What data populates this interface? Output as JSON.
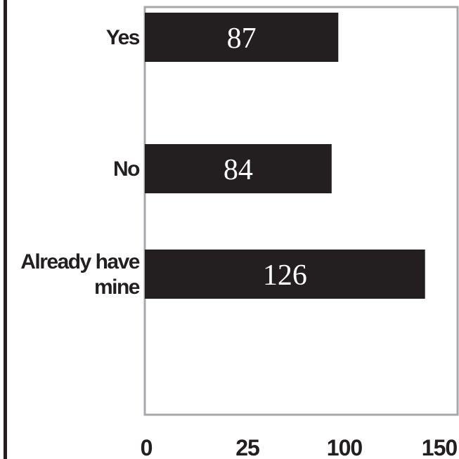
{
  "colors": {
    "bar": "#231f20",
    "plot_border": "#a7a9ac",
    "left_rule": "#231f20",
    "bar_label": "#ffffff",
    "text": "#231f20"
  },
  "chart_data": {
    "type": "bar",
    "orientation": "horizontal",
    "categories": [
      [
        "Yes"
      ],
      [
        "No"
      ],
      [
        "Already have",
        "mine"
      ]
    ],
    "values": [
      87,
      84,
      126
    ],
    "value_labels": [
      "87",
      "84",
      "126"
    ],
    "x_ticks": [
      {
        "label": "0",
        "value": 0
      },
      {
        "label": "25",
        "value": 25
      },
      {
        "label": "100",
        "value": 100
      },
      {
        "label": "150",
        "value": 150
      }
    ],
    "xlim": [
      0,
      140
    ],
    "grid": false,
    "legend": "none"
  }
}
